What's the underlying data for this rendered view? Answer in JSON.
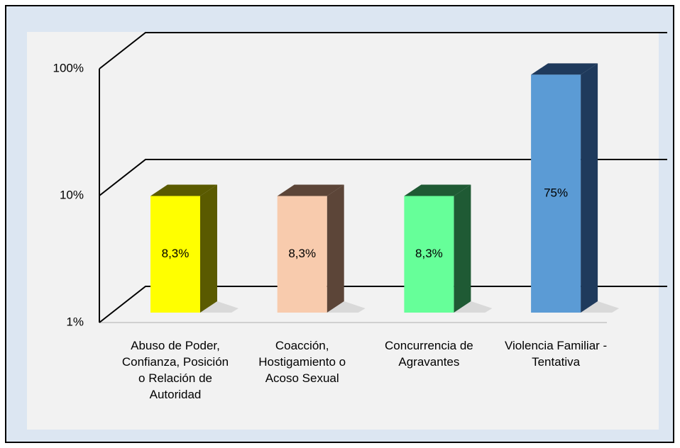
{
  "chart_data": {
    "type": "bar3d",
    "categories": [
      "Abuso de Poder, Confianza, Posición o Relación de Autoridad",
      "Coacción, Hostigamiento o Acoso Sexual",
      "Concurrencia de Agravantes",
      "Violencia Familiar - Tentativa"
    ],
    "values": [
      8.3,
      8.3,
      8.3,
      75
    ],
    "value_labels": [
      "8,3%",
      "8,3%",
      "8,3%",
      "75%"
    ],
    "colors": [
      "#ffff00",
      "#f8cbad",
      "#66ff99",
      "#5b9bd5"
    ],
    "side_colors": [
      "#5a5a00",
      "#5c4538",
      "#1f5a34",
      "#1f3a5c"
    ],
    "ylim": [
      1,
      100
    ],
    "yticks": [
      {
        "value": 1,
        "label": "1%"
      },
      {
        "value": 10,
        "label": "10%"
      },
      {
        "value": 100,
        "label": "100%"
      }
    ],
    "log_scale": true,
    "grid": true
  }
}
